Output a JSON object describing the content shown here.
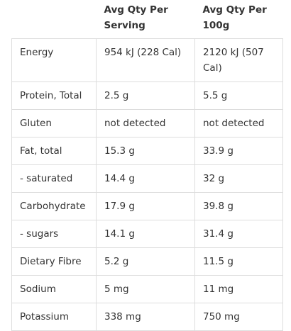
{
  "table": {
    "header": [
      "Avg Qty Per Serving",
      "Avg Qty Per 100g"
    ],
    "rows": [
      [
        "Energy",
        "954 kJ (228 Cal)",
        "2120 kJ (507 Cal)"
      ],
      [
        "Protein, Total",
        "2.5 g",
        "5.5 g"
      ],
      [
        "Gluten",
        "not detected",
        "not detected"
      ],
      [
        "Fat, total",
        "15.3 g",
        "33.9 g"
      ],
      [
        "- saturated",
        "14.4 g",
        "32 g"
      ],
      [
        "Carbohydrate",
        "17.9 g",
        "39.8 g"
      ],
      [
        "- sugars",
        "14.1 g",
        "31.4 g"
      ],
      [
        "Dietary Fibre",
        "5.2 g",
        "11.5 g"
      ],
      [
        "Sodium",
        "5 mg",
        "11 mg"
      ],
      [
        "Potassium",
        "338 mg",
        "750 mg"
      ]
    ]
  }
}
